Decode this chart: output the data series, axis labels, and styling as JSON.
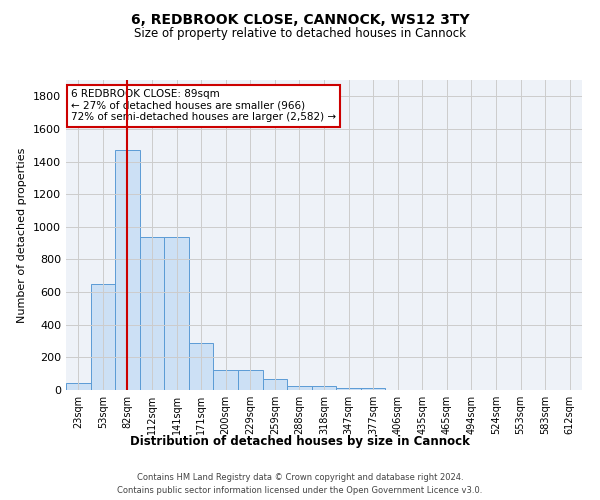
{
  "title1": "6, REDBROOK CLOSE, CANNOCK, WS12 3TY",
  "title2": "Size of property relative to detached houses in Cannock",
  "xlabel": "Distribution of detached houses by size in Cannock",
  "ylabel": "Number of detached properties",
  "bin_labels": [
    "23sqm",
    "53sqm",
    "82sqm",
    "112sqm",
    "141sqm",
    "171sqm",
    "200sqm",
    "229sqm",
    "259sqm",
    "288sqm",
    "318sqm",
    "347sqm",
    "377sqm",
    "406sqm",
    "435sqm",
    "465sqm",
    "494sqm",
    "524sqm",
    "553sqm",
    "583sqm",
    "612sqm"
  ],
  "bar_values": [
    40,
    650,
    1470,
    935,
    935,
    290,
    125,
    125,
    65,
    22,
    22,
    15,
    15,
    0,
    0,
    0,
    0,
    0,
    0,
    0,
    0
  ],
  "bar_color": "#cce0f5",
  "bar_edge_color": "#5b9bd5",
  "vline_x": 2,
  "vline_color": "#cc0000",
  "annotation_text": "6 REDBROOK CLOSE: 89sqm\n← 27% of detached houses are smaller (966)\n72% of semi-detached houses are larger (2,582) →",
  "annotation_box_color": "#cc0000",
  "ylim": [
    0,
    1900
  ],
  "yticks": [
    0,
    200,
    400,
    600,
    800,
    1000,
    1200,
    1400,
    1600,
    1800
  ],
  "grid_color": "#cccccc",
  "bg_color": "#eef2f8",
  "footer1": "Contains HM Land Registry data © Crown copyright and database right 2024.",
  "footer2": "Contains public sector information licensed under the Open Government Licence v3.0."
}
